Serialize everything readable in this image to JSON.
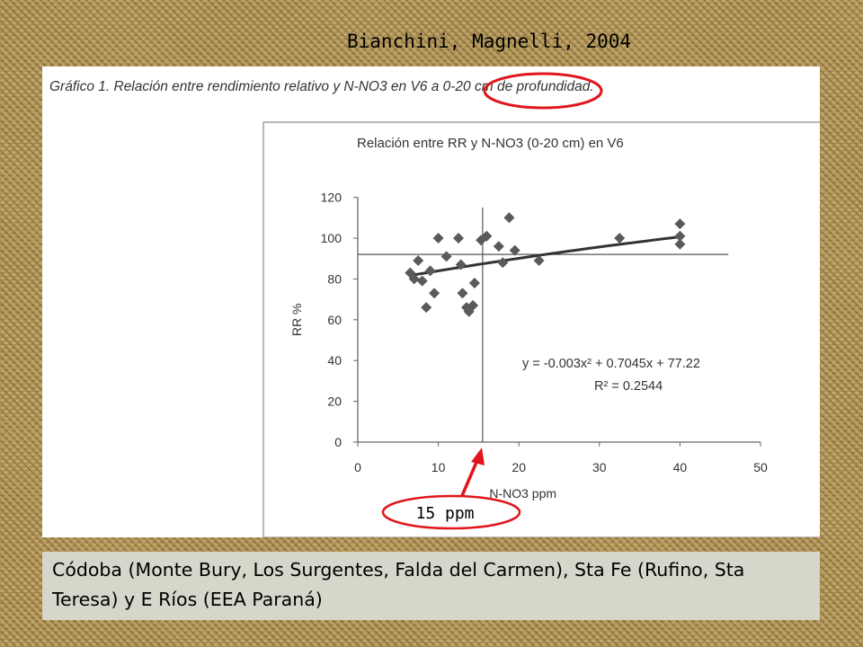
{
  "slide": {
    "title": "Bianchini, Magnelli, 2004",
    "caption": "Gráfico 1. Relación entre rendimiento relativo y N-NO3 en V6   a 0-20 cm de profundidad.",
    "annotation": "15 ppm",
    "footer": "Códoba (Monte Bury, Los Surgentes, Falda del Carmen), Sta Fe (Rufino, Sta Teresa) y E Ríos (EEA Paraná)",
    "colors": {
      "highlight": "#e0161c",
      "marker": "#5a5a5a",
      "trend": "#333333"
    }
  },
  "chart_data": {
    "type": "scatter",
    "title": "Relación entre  RR y N-NO3 (0-20 cm) en V6",
    "xlabel": "N-NO3 ppm",
    "ylabel": "RR %",
    "xlim": [
      0,
      50
    ],
    "ylim": [
      0,
      120
    ],
    "xticks": [
      "0",
      "10",
      "20",
      "30",
      "40",
      "50"
    ],
    "yticks": [
      "0",
      "20",
      "40",
      "60",
      "80",
      "100",
      "120"
    ],
    "grid": false,
    "equation": "y = -0.003x² + 0.7045x + 77.22",
    "r2": "R² = 0.2544",
    "trend": {
      "a": -0.003,
      "b": 0.7045,
      "c": 77.22,
      "x_range": [
        6.5,
        40
      ]
    },
    "reference_lines": {
      "horizontal_y": 92,
      "vertical_x": 15.5
    },
    "points": [
      [
        6.5,
        83
      ],
      [
        7,
        80
      ],
      [
        7.5,
        89
      ],
      [
        8,
        79
      ],
      [
        8.5,
        66
      ],
      [
        9,
        84
      ],
      [
        9.5,
        73
      ],
      [
        10,
        100
      ],
      [
        11,
        91
      ],
      [
        12.5,
        100
      ],
      [
        12.8,
        87
      ],
      [
        13,
        73
      ],
      [
        13.5,
        66
      ],
      [
        13.8,
        64
      ],
      [
        14.3,
        67
      ],
      [
        14.5,
        78
      ],
      [
        15.3,
        99
      ],
      [
        16,
        101
      ],
      [
        17.5,
        96
      ],
      [
        18,
        88
      ],
      [
        18.8,
        110
      ],
      [
        19.5,
        94
      ],
      [
        22.5,
        89
      ],
      [
        32.5,
        100
      ],
      [
        40,
        107
      ],
      [
        40,
        101
      ],
      [
        40,
        97
      ]
    ]
  }
}
